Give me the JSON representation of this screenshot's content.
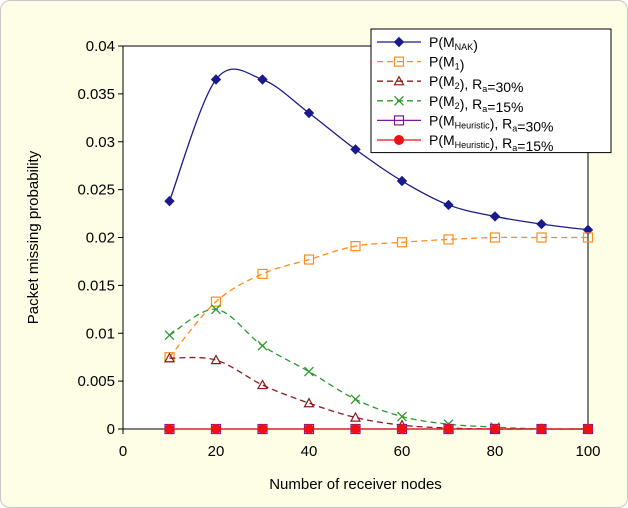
{
  "chart_data": {
    "type": "line",
    "title": "",
    "xlabel": "Number of receiver nodes",
    "ylabel": "Packet missing probability",
    "xlim": [
      0,
      100
    ],
    "ylim": [
      0,
      0.04
    ],
    "xticks": [
      "0",
      "20",
      "40",
      "60",
      "80",
      "100"
    ],
    "yticks": [
      "0",
      "0.005",
      "0.01",
      "0.015",
      "0.02",
      "0.025",
      "0.03",
      "0.035",
      "0.04"
    ],
    "grid": false,
    "legend_position": "top-right",
    "series": [
      {
        "name": "P(M_NAK)",
        "legend": {
          "main": "P(M",
          "sub": "NAK",
          "suffix": ")"
        },
        "color": "#1a1a8c",
        "dash": "",
        "marker": "diamond",
        "marker_fill": "#1a1a8c",
        "x": [
          10,
          20,
          30,
          40,
          50,
          60,
          70,
          80,
          90,
          100
        ],
        "y": [
          0.0238,
          0.0365,
          0.0365,
          0.033,
          0.0292,
          0.0259,
          0.0234,
          0.0222,
          0.0214,
          0.0208
        ]
      },
      {
        "name": "P(M1)",
        "legend": {
          "main": "P(M",
          "sub": "1",
          "suffix": ")"
        },
        "color": "#ff8c1a",
        "dash": "6,4",
        "marker": "square",
        "marker_fill": "none",
        "x": [
          10,
          20,
          30,
          40,
          50,
          60,
          70,
          80,
          90,
          100
        ],
        "y": [
          0.0075,
          0.0133,
          0.0162,
          0.0177,
          0.0191,
          0.0195,
          0.0198,
          0.02,
          0.02,
          0.02
        ]
      },
      {
        "name": "P(M2), Ra=30%",
        "legend": {
          "main": "P(M",
          "sub": "2",
          "suffix": "), R",
          "sub2": "a",
          "suffix2": "=30%"
        },
        "color": "#8b1a1a",
        "dash": "6,4",
        "marker": "triangle",
        "marker_fill": "none",
        "x": [
          10,
          20,
          30,
          40,
          50,
          60,
          70,
          80,
          90,
          100
        ],
        "y": [
          0.0074,
          0.0072,
          0.0046,
          0.0027,
          0.0012,
          0.0004,
          0.0001,
          0.0,
          0.0,
          0.0
        ]
      },
      {
        "name": "P(M2), Ra=15%",
        "legend": {
          "main": "P(M",
          "sub": "2",
          "suffix": "), R",
          "sub2": "a",
          "suffix2": "=15%"
        },
        "color": "#2a9a2a",
        "dash": "6,4",
        "marker": "x",
        "marker_fill": "none",
        "x": [
          10,
          20,
          30,
          40,
          50,
          60,
          70,
          80,
          90,
          100
        ],
        "y": [
          0.0098,
          0.0125,
          0.0087,
          0.006,
          0.0031,
          0.0013,
          0.0005,
          0.0002,
          0.0,
          0.0
        ]
      },
      {
        "name": "P(MHeuristic), Ra=30%",
        "legend": {
          "main": "P(M",
          "sub": "Heuristic",
          "suffix": "), R",
          "sub2": "a",
          "suffix2": "=30%"
        },
        "color": "#7a1a9a",
        "dash": "",
        "marker": "square",
        "marker_fill": "none",
        "x": [
          10,
          20,
          30,
          40,
          50,
          60,
          70,
          80,
          90,
          100
        ],
        "y": [
          0,
          0,
          0,
          0,
          0,
          0,
          0,
          0,
          0,
          0
        ]
      },
      {
        "name": "P(MHeuristic), Ra=15%",
        "legend": {
          "main": "P(M",
          "sub": "Heuristic",
          "suffix": "), R",
          "sub2": "a",
          "suffix2": "=15%"
        },
        "color": "#ee1111",
        "dash": "",
        "marker": "circle",
        "marker_fill": "#ee1111",
        "x": [
          10,
          20,
          30,
          40,
          50,
          60,
          70,
          80,
          90,
          100
        ],
        "y": [
          0,
          0,
          0,
          0,
          0,
          0,
          0,
          0,
          0,
          0
        ]
      }
    ]
  }
}
